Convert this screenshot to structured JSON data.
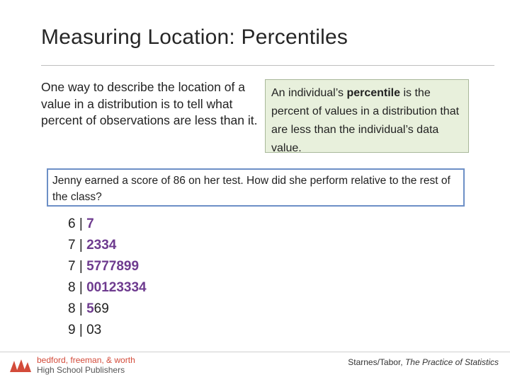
{
  "slide": {
    "title": "Measuring Location: Percentiles",
    "intro": "One way to describe the location of a value in a distribution is to tell what percent of observations are less than it.",
    "definition": {
      "before": "An individual’s ",
      "term": "percentile",
      "after": " is the percent of values in a distribution that are less than the individual’s data value."
    },
    "question": "Jenny earned a score of 86 on her test.  How did she perform relative to the rest of the class?",
    "stemplot": [
      {
        "stem": "6",
        "leaves_hi": "7",
        "leaves_lo": ""
      },
      {
        "stem": "7",
        "leaves_hi": "2334",
        "leaves_lo": ""
      },
      {
        "stem": "7",
        "leaves_hi": "5777899",
        "leaves_lo": ""
      },
      {
        "stem": "8",
        "leaves_hi": "00123334",
        "leaves_lo": ""
      },
      {
        "stem": "8",
        "leaves_hi": "5",
        "leaves_lo": "69"
      },
      {
        "stem": "9",
        "leaves_hi": "",
        "leaves_lo": "03"
      }
    ],
    "separator": "|"
  },
  "footer": {
    "publisher_line1": "bedford, freeman, & worth",
    "publisher_line2": "High School Publishers",
    "credit_authors": "Starnes/Tabor, ",
    "credit_book": "The Practice of Statistics",
    "logo_icon": "publisher-logo-icon",
    "accent_color": "#d34b3a"
  }
}
